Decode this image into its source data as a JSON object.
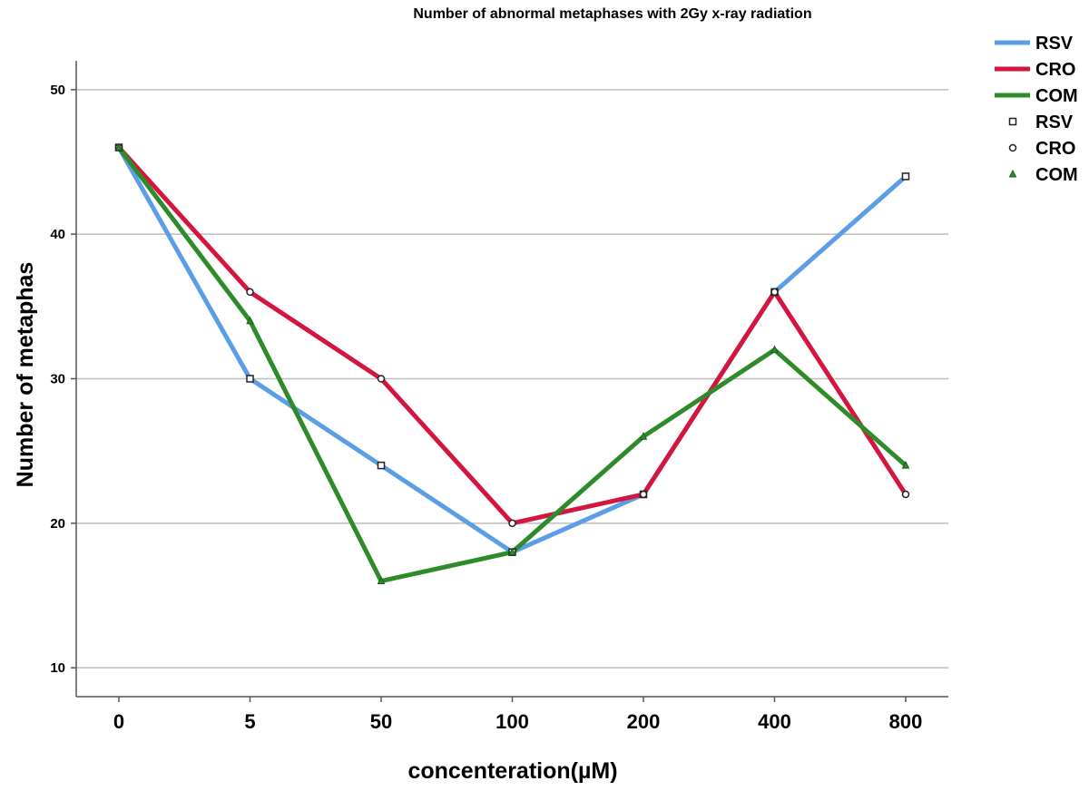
{
  "chart_data": {
    "type": "line",
    "title": "Number of abnormal metaphases with 2Gy x-ray radiation",
    "xlabel": "concenteration(µM)",
    "ylabel": "Number of metaphas",
    "categories": [
      "0",
      "5",
      "50",
      "100",
      "200",
      "400",
      "800"
    ],
    "ylim": [
      8,
      52
    ],
    "yticks": [
      10,
      20,
      30,
      40,
      50
    ],
    "grid": true,
    "legend_position": "top-right",
    "series": [
      {
        "name": "RSV",
        "marker_name": "RSV",
        "color": "#5b9ee6",
        "marker": "square",
        "values": [
          46,
          30,
          24,
          18,
          22,
          36,
          44
        ]
      },
      {
        "name": "CRO",
        "marker_name": "CRO",
        "color": "#d4163f",
        "marker": "circle",
        "values": [
          46,
          36,
          30,
          20,
          22,
          36,
          22
        ]
      },
      {
        "name": "COM",
        "marker_name": "COM",
        "color": "#2e8b2a",
        "marker": "triangle",
        "values": [
          46,
          34,
          16,
          18,
          26,
          32,
          24
        ]
      }
    ]
  }
}
